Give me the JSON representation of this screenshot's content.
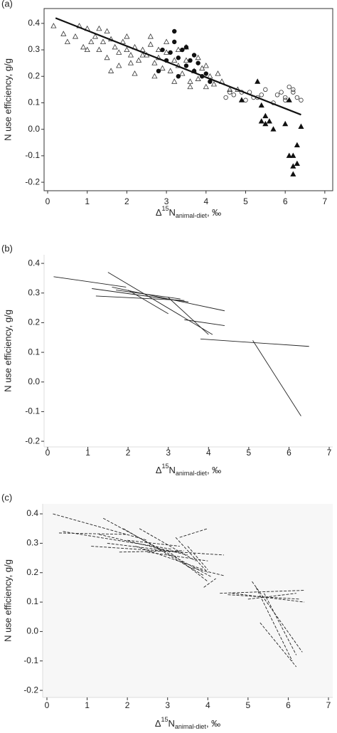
{
  "chart_data": [
    {
      "type": "scatter",
      "panel_label": "(a)",
      "y_label": "N use efficiency, g/g",
      "x_label": {
        "delta": "Δ",
        "superscript": "15",
        "base": "N",
        "subscript": "animal-diet",
        "suffix": ", ‰"
      },
      "xlim": [
        -0.09,
        7.2
      ],
      "ylim": [
        -0.232,
        0.456
      ],
      "xticks": [
        0,
        1,
        2,
        3,
        4,
        5,
        6,
        7
      ],
      "yticks": [
        -0.2,
        -0.1,
        {
          "value": 0,
          "label": "0.0"
        },
        0.1,
        0.2,
        0.3,
        0.4
      ],
      "series": [
        {
          "marker": "triangle-open",
          "color": "#333333",
          "x": [
            0.15,
            0.4,
            0.5,
            0.7,
            0.8,
            0.9,
            1.0,
            1.1,
            1.2,
            1.3,
            1.4,
            1.5,
            1.6,
            1.7,
            1.8,
            1.9,
            2.0,
            2.1,
            2.2,
            2.3,
            2.4,
            2.5,
            2.6,
            2.7,
            2.8,
            2.9,
            3.0,
            3.1,
            3.2,
            3.3,
            3.4,
            3.5,
            3.6,
            3.7,
            3.8,
            3.9,
            4.0,
            4.1,
            4.2,
            4.3,
            1.3,
            1.5,
            1.8,
            2.0,
            2.2,
            2.4,
            2.6,
            2.8,
            3.0,
            3.2,
            3.5,
            3.8,
            4.4,
            4.6,
            4.8,
            1.0,
            1.6,
            2.1,
            2.7,
            3.3,
            3.6,
            4.0
          ],
          "values": [
            0.39,
            0.36,
            0.33,
            0.35,
            0.39,
            0.31,
            0.38,
            0.33,
            0.35,
            0.3,
            0.33,
            0.27,
            0.34,
            0.31,
            0.29,
            0.33,
            0.35,
            0.28,
            0.31,
            0.26,
            0.3,
            0.28,
            0.32,
            0.25,
            0.27,
            0.23,
            0.29,
            0.22,
            0.26,
            0.24,
            0.21,
            0.26,
            0.18,
            0.22,
            0.19,
            0.23,
            0.16,
            0.2,
            0.17,
            0.21,
            0.38,
            0.37,
            0.24,
            0.3,
            0.21,
            0.28,
            0.35,
            0.3,
            0.33,
            0.18,
            0.31,
            0.27,
            0.18,
            0.15,
            0.15,
            0.3,
            0.22,
            0.25,
            0.2,
            0.3,
            0.16,
            0.24
          ]
        },
        {
          "marker": "circle-filled",
          "color": "#111111",
          "x": [
            2.8,
            3.0,
            3.1,
            3.2,
            3.3,
            3.4,
            3.5,
            3.6,
            3.7,
            3.8,
            3.9,
            4.0,
            3.2,
            3.5,
            3.7,
            4.1,
            3.3,
            2.9
          ],
          "values": [
            0.22,
            0.26,
            0.29,
            0.33,
            0.27,
            0.3,
            0.24,
            0.26,
            0.22,
            0.25,
            0.2,
            0.21,
            0.37,
            0.31,
            0.28,
            0.18,
            0.2,
            0.3
          ]
        },
        {
          "marker": "circle-open",
          "color": "#333333",
          "x": [
            4.5,
            4.6,
            4.7,
            4.9,
            5.0,
            5.1,
            5.2,
            5.4,
            5.5,
            5.7,
            5.9,
            6.0,
            6.1,
            6.2,
            6.3,
            6.4,
            6.2,
            6.0,
            5.8,
            5.3
          ],
          "values": [
            0.12,
            0.14,
            0.13,
            0.14,
            0.11,
            0.14,
            0.12,
            0.13,
            0.15,
            0.1,
            0.14,
            0.12,
            0.16,
            0.15,
            0.12,
            0.11,
            0.14,
            0.11,
            0.13,
            0.12
          ]
        },
        {
          "marker": "triangle-filled",
          "color": "#111111",
          "x": [
            4.9,
            5.3,
            5.4,
            5.5,
            5.6,
            5.4,
            5.5,
            5.7,
            6.0,
            6.1,
            6.2,
            6.2,
            6.3,
            6.2,
            6.3,
            6.4,
            6.1
          ],
          "values": [
            0.11,
            0.18,
            0.09,
            0.05,
            0.03,
            0.03,
            0.02,
            0.0,
            0.02,
            -0.1,
            -0.14,
            -0.17,
            -0.13,
            -0.1,
            -0.06,
            0.01,
            0.11
          ]
        }
      ],
      "fit": {
        "x": [
          0.2,
          6.4
        ],
        "values": [
          0.42,
          0.055
        ],
        "color": "#111111"
      }
    },
    {
      "type": "segments",
      "panel_label": "(b)",
      "y_label": "N use efficiency, g/g",
      "x_label": {
        "delta": "Δ",
        "superscript": "15",
        "base": "N",
        "subscript": "animal-diet",
        "suffix": ", ‰"
      },
      "xlim": [
        -0.088,
        7.088
      ],
      "ylim": [
        -0.219,
        0.429
      ],
      "dashed": false,
      "color": "#222222",
      "xticks": [
        0,
        1,
        2,
        3,
        4,
        5,
        6,
        7
      ],
      "yticks": [
        -0.2,
        -0.1,
        {
          "value": 0,
          "label": "0.0"
        },
        0.1,
        0.2,
        0.3,
        0.4
      ],
      "series": [
        {
          "x": [
            0.15,
            1.95
          ],
          "values": [
            0.355,
            0.32
          ]
        },
        {
          "x": [
            1.1,
            3.5
          ],
          "values": [
            0.315,
            0.27
          ]
        },
        {
          "x": [
            1.2,
            3.4
          ],
          "values": [
            0.29,
            0.275
          ]
        },
        {
          "x": [
            1.5,
            4.1
          ],
          "values": [
            0.37,
            0.16
          ]
        },
        {
          "x": [
            1.7,
            3.3
          ],
          "values": [
            0.31,
            0.28
          ]
        },
        {
          "x": [
            2.0,
            3.0
          ],
          "values": [
            0.31,
            0.23
          ]
        },
        {
          "x": [
            1.6,
            4.4
          ],
          "values": [
            0.32,
            0.24
          ]
        },
        {
          "x": [
            3.0,
            4.0
          ],
          "values": [
            0.285,
            0.16
          ]
        },
        {
          "x": [
            3.4,
            4.4
          ],
          "values": [
            0.21,
            0.19
          ]
        },
        {
          "x": [
            3.8,
            6.5
          ],
          "values": [
            0.145,
            0.12
          ]
        },
        {
          "x": [
            5.1,
            6.3
          ],
          "values": [
            0.14,
            -0.115
          ]
        }
      ]
    },
    {
      "type": "segments",
      "panel_label": "(c)",
      "y_label": "N use efficiency, g/g",
      "x_label": {
        "delta": "Δ",
        "superscript": "15",
        "base": "N",
        "subscript": "animal-diet",
        "suffix": ", ‰"
      },
      "xlim": [
        -0.106,
        7.106
      ],
      "ylim": [
        -0.224,
        0.434
      ],
      "dashed": true,
      "color": "#222222",
      "xticks": [
        0,
        1,
        2,
        3,
        4,
        5,
        6,
        7
      ],
      "yticks": [
        -0.2,
        -0.1,
        {
          "value": 0,
          "label": "0.0"
        },
        0.1,
        0.2,
        0.3,
        0.4
      ],
      "series": [
        {
          "x": [
            0.15,
            2.5
          ],
          "values": [
            0.4,
            0.31
          ]
        },
        {
          "x": [
            0.3,
            2.0
          ],
          "values": [
            0.335,
            0.33
          ]
        },
        {
          "x": [
            0.4,
            3.1
          ],
          "values": [
            0.34,
            0.28
          ]
        },
        {
          "x": [
            1.1,
            4.4
          ],
          "values": [
            0.29,
            0.26
          ]
        },
        {
          "x": [
            1.3,
            3.5
          ],
          "values": [
            0.33,
            0.26
          ]
        },
        {
          "x": [
            1.5,
            3.3
          ],
          "values": [
            0.3,
            0.27
          ]
        },
        {
          "x": [
            1.8,
            3.4
          ],
          "values": [
            0.27,
            0.275
          ]
        },
        {
          "x": [
            2.0,
            3.3
          ],
          "values": [
            0.31,
            0.29
          ]
        },
        {
          "x": [
            1.4,
            4.1
          ],
          "values": [
            0.385,
            0.185
          ]
        },
        {
          "x": [
            1.9,
            3.9
          ],
          "values": [
            0.35,
            0.19
          ]
        },
        {
          "x": [
            2.3,
            3.7
          ],
          "values": [
            0.35,
            0.24
          ]
        },
        {
          "x": [
            2.2,
            3.9
          ],
          "values": [
            0.29,
            0.21
          ]
        },
        {
          "x": [
            2.5,
            4.0
          ],
          "values": [
            0.27,
            0.24
          ]
        },
        {
          "x": [
            3.0,
            4.0
          ],
          "values": [
            0.275,
            0.17
          ]
        },
        {
          "x": [
            3.2,
            4.0
          ],
          "values": [
            0.32,
            0.2
          ]
        },
        {
          "x": [
            3.5,
            4.0
          ],
          "values": [
            0.29,
            0.21
          ]
        },
        {
          "x": [
            3.3,
            4.0
          ],
          "values": [
            0.32,
            0.35
          ]
        },
        {
          "x": [
            3.5,
            4.4
          ],
          "values": [
            0.22,
            0.19
          ]
        },
        {
          "x": [
            3.9,
            4.2
          ],
          "values": [
            0.15,
            0.18
          ]
        },
        {
          "x": [
            4.3,
            6.4
          ],
          "values": [
            0.13,
            0.14
          ]
        },
        {
          "x": [
            4.6,
            6.4
          ],
          "values": [
            0.13,
            0.1
          ]
        },
        {
          "x": [
            5.0,
            6.2
          ],
          "values": [
            0.11,
            0.13
          ]
        },
        {
          "x": [
            4.5,
            6.3
          ],
          "values": [
            0.125,
            0.11
          ]
        },
        {
          "x": [
            5.1,
            6.35
          ],
          "values": [
            0.17,
            -0.07
          ]
        },
        {
          "x": [
            5.4,
            6.2
          ],
          "values": [
            0.13,
            -0.08
          ]
        },
        {
          "x": [
            5.3,
            6.2
          ],
          "values": [
            0.03,
            -0.12
          ]
        },
        {
          "x": [
            5.2,
            6.1
          ],
          "values": [
            0.15,
            -0.1
          ]
        }
      ]
    }
  ]
}
